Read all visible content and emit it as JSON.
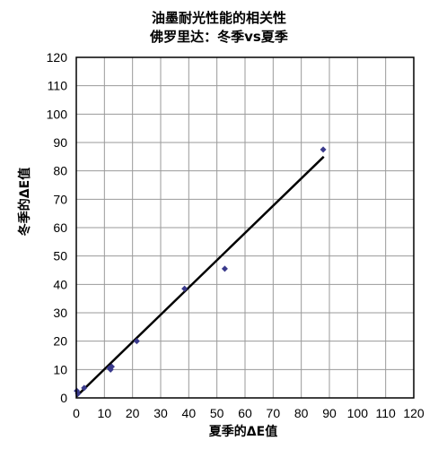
{
  "chart_data": {
    "type": "scatter",
    "title_line1": "油墨耐光性能的相关性",
    "title_line2": "佛罗里达：冬季vs夏季",
    "xlabel": "夏季的ΔE值",
    "ylabel": "冬季的ΔE值",
    "xlim": [
      0,
      120
    ],
    "ylim": [
      0,
      120
    ],
    "xticks": [
      0,
      10,
      20,
      30,
      40,
      50,
      60,
      70,
      80,
      90,
      100,
      110,
      120
    ],
    "yticks": [
      0,
      10,
      20,
      30,
      40,
      50,
      60,
      70,
      80,
      90,
      100,
      110,
      120
    ],
    "grid": true,
    "point_color": "#3a3a8c",
    "line_color": "#000000",
    "points": [
      {
        "x": 0.2,
        "y": 2.5
      },
      {
        "x": 0.6,
        "y": 1.5
      },
      {
        "x": 2.8,
        "y": 3.5
      },
      {
        "x": 11.8,
        "y": 10.5
      },
      {
        "x": 12.2,
        "y": 10.0
      },
      {
        "x": 12.6,
        "y": 11.0
      },
      {
        "x": 21.5,
        "y": 20.0
      },
      {
        "x": 38.5,
        "y": 38.5
      },
      {
        "x": 52.8,
        "y": 45.5
      },
      {
        "x": 87.8,
        "y": 87.5
      }
    ],
    "trendline": {
      "x": [
        0,
        88
      ],
      "y": [
        0.5,
        85
      ]
    }
  }
}
